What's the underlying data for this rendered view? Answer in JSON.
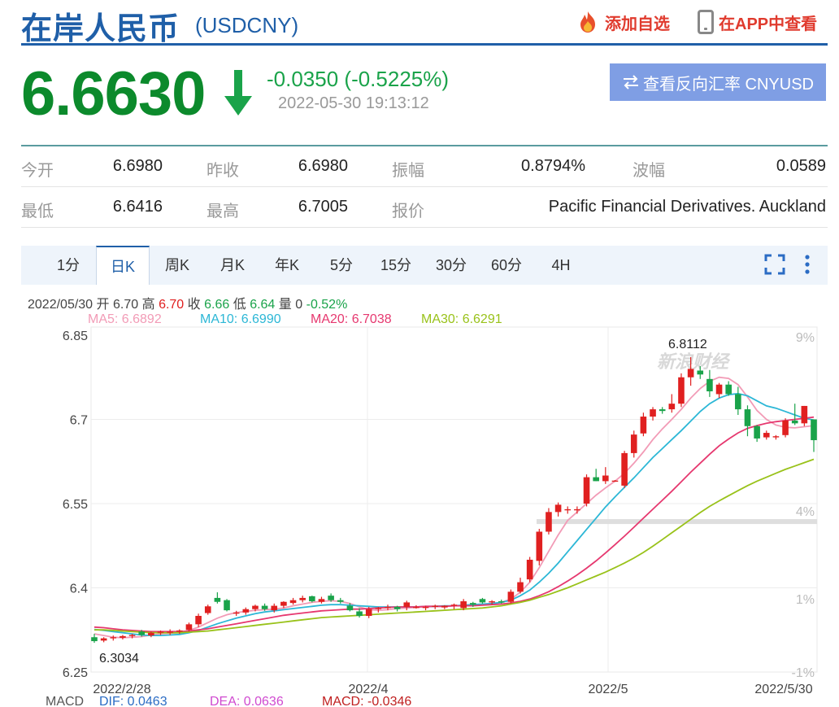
{
  "header": {
    "title": "在岸人民币",
    "code": "(USDCNY)",
    "add_watchlist": "添加自选",
    "view_in_app": "在APP中查看"
  },
  "quote": {
    "price": "6.6630",
    "change": "-0.0350 (-0.5225%)",
    "time": "2022-05-30 19:13:12",
    "direction": "down",
    "reverse_button": "查看反向汇率 CNYUSD"
  },
  "stats": {
    "open_label": "今开",
    "open": "6.6980",
    "prev_close_label": "昨收",
    "prev_close": "6.6980",
    "amplitude_label": "振幅",
    "amplitude": "0.8794%",
    "range_label": "波幅",
    "range": "0.0589",
    "low_label": "最低",
    "low": "6.6416",
    "high_label": "最高",
    "high": "6.7005",
    "quote_label": "报价",
    "quote_source": "Pacific Financial Derivatives. Auckland"
  },
  "tabs": [
    "1分",
    "日K",
    "周K",
    "月K",
    "年K",
    "5分",
    "15分",
    "30分",
    "60分",
    "4H"
  ],
  "active_tab": "日K",
  "info": {
    "date": "2022/05/30",
    "open_label": "开",
    "open": "6.70",
    "high_label": "高",
    "high": "6.70",
    "close_label": "收",
    "close": "6.66",
    "low_label": "低",
    "low": "6.64",
    "vol_label": "量",
    "vol": "0",
    "pct": "-0.52%"
  },
  "ma": {
    "ma5": "MA5: 6.6892",
    "ma10": "MA10: 6.6990",
    "ma20": "MA20: 6.7038",
    "ma30": "MA30: 6.6291"
  },
  "macd": {
    "label": "MACD",
    "dif": "DIF: 0.0463",
    "dea": "DEA: 0.0636",
    "macd": "MACD: -0.0346"
  },
  "colors": {
    "up": "#e02020",
    "down": "#1aa34a",
    "ma5": "#f29bb6",
    "ma10": "#2cb7d6",
    "ma20": "#e6386f",
    "ma30": "#99c21a",
    "brand": "#1f5fa8"
  },
  "chart_data": {
    "type": "candlestick",
    "y_ticks": [
      "6.85",
      "6.7",
      "6.55",
      "6.4",
      "6.25"
    ],
    "y_range": [
      6.25,
      6.85
    ],
    "pct_ticks": [
      "9%",
      "4%",
      "1%",
      "-1%"
    ],
    "x_ticks": [
      "2022/2/28",
      "2022/4",
      "2022/5",
      "2022/5/30"
    ],
    "max_label": "6.8112",
    "min_label": "6.3034",
    "watermark": "新浪财经",
    "candles": [
      [
        6.312,
        6.318,
        6.302,
        6.305
      ],
      [
        6.306,
        6.312,
        6.303,
        6.31
      ],
      [
        6.31,
        6.315,
        6.306,
        6.312
      ],
      [
        6.311,
        6.316,
        6.308,
        6.314
      ],
      [
        6.314,
        6.318,
        6.31,
        6.316
      ],
      [
        6.322,
        6.325,
        6.313,
        6.316
      ],
      [
        6.315,
        6.322,
        6.312,
        6.32
      ],
      [
        6.32,
        6.324,
        6.316,
        6.322
      ],
      [
        6.32,
        6.326,
        6.316,
        6.322
      ],
      [
        6.322,
        6.326,
        6.318,
        6.324
      ],
      [
        6.325,
        6.338,
        6.322,
        6.335
      ],
      [
        6.335,
        6.354,
        6.33,
        6.35
      ],
      [
        6.355,
        6.37,
        6.352,
        6.367
      ],
      [
        6.382,
        6.392,
        6.372,
        6.375
      ],
      [
        6.378,
        6.38,
        6.358,
        6.36
      ],
      [
        6.355,
        6.359,
        6.35,
        6.356
      ],
      [
        6.356,
        6.365,
        6.352,
        6.362
      ],
      [
        6.362,
        6.37,
        6.358,
        6.368
      ],
      [
        6.368,
        6.372,
        6.359,
        6.362
      ],
      [
        6.36,
        6.372,
        6.356,
        6.368
      ],
      [
        6.368,
        6.376,
        6.364,
        6.375
      ],
      [
        6.373,
        6.382,
        6.37,
        6.378
      ],
      [
        6.378,
        6.386,
        6.374,
        6.382
      ],
      [
        6.385,
        6.386,
        6.374,
        6.376
      ],
      [
        6.375,
        6.384,
        6.372,
        6.38
      ],
      [
        6.386,
        6.39,
        6.375,
        6.378
      ],
      [
        6.378,
        6.382,
        6.372,
        6.375
      ],
      [
        6.368,
        6.373,
        6.358,
        6.36
      ],
      [
        6.358,
        6.364,
        6.347,
        6.35
      ],
      [
        6.35,
        6.366,
        6.346,
        6.362
      ],
      [
        6.362,
        6.366,
        6.356,
        6.364
      ],
      [
        6.364,
        6.37,
        6.36,
        6.366
      ],
      [
        6.366,
        6.368,
        6.358,
        6.362
      ],
      [
        6.366,
        6.377,
        6.36,
        6.374
      ],
      [
        6.366,
        6.369,
        6.363,
        6.366
      ],
      [
        6.364,
        6.368,
        6.36,
        6.366
      ],
      [
        6.366,
        6.37,
        6.362,
        6.368
      ],
      [
        6.365,
        6.369,
        6.362,
        6.368
      ],
      [
        6.368,
        6.372,
        6.362,
        6.37
      ],
      [
        6.364,
        6.38,
        6.36,
        6.376
      ],
      [
        6.373,
        6.375,
        6.366,
        6.37
      ],
      [
        6.38,
        6.382,
        6.372,
        6.374
      ],
      [
        6.374,
        6.378,
        6.37,
        6.376
      ],
      [
        6.376,
        6.379,
        6.372,
        6.375
      ],
      [
        6.375,
        6.397,
        6.372,
        6.393
      ],
      [
        6.393,
        6.418,
        6.39,
        6.41
      ],
      [
        6.415,
        6.455,
        6.41,
        6.45
      ],
      [
        6.448,
        6.505,
        6.44,
        6.5
      ],
      [
        6.5,
        6.542,
        6.495,
        6.535
      ],
      [
        6.535,
        6.552,
        6.527,
        6.548
      ],
      [
        6.54,
        6.545,
        6.532,
        6.54
      ],
      [
        6.54,
        6.545,
        6.532,
        6.54
      ],
      [
        6.55,
        6.602,
        6.545,
        6.597
      ],
      [
        6.597,
        6.612,
        6.59,
        6.59
      ],
      [
        6.59,
        6.615,
        6.585,
        6.6
      ],
      [
        6.591,
        6.592,
        6.589,
        6.591
      ],
      [
        6.582,
        6.644,
        6.578,
        6.64
      ],
      [
        6.64,
        6.68,
        6.632,
        6.673
      ],
      [
        6.675,
        6.712,
        6.67,
        6.705
      ],
      [
        6.705,
        6.722,
        6.698,
        6.718
      ],
      [
        6.718,
        6.722,
        6.71,
        6.715
      ],
      [
        6.718,
        6.745,
        6.712,
        6.728
      ],
      [
        6.728,
        6.782,
        6.722,
        6.775
      ],
      [
        6.775,
        6.811,
        6.76,
        6.79
      ],
      [
        6.787,
        6.795,
        6.772,
        6.78
      ],
      [
        6.772,
        6.788,
        6.74,
        6.75
      ],
      [
        6.745,
        6.765,
        6.738,
        6.762
      ],
      [
        6.762,
        6.768,
        6.742,
        6.745
      ],
      [
        6.745,
        6.758,
        6.708,
        6.718
      ],
      [
        6.718,
        6.725,
        6.67,
        6.688
      ],
      [
        6.688,
        6.69,
        6.66,
        6.666
      ],
      [
        6.668,
        6.68,
        6.664,
        6.676
      ],
      [
        6.668,
        6.672,
        6.664,
        6.67
      ],
      [
        6.672,
        6.702,
        6.668,
        6.698
      ],
      [
        6.698,
        6.728,
        6.69,
        6.693
      ],
      [
        6.693,
        6.724,
        6.688,
        6.724
      ],
      [
        6.7,
        6.7,
        6.642,
        6.663
      ]
    ],
    "ma_series": {
      "MA5": [
        6.318,
        6.315,
        6.312,
        6.311,
        6.312,
        6.313,
        6.316,
        6.318,
        6.319,
        6.32,
        6.324,
        6.33,
        6.338,
        6.346,
        6.352,
        6.356,
        6.358,
        6.36,
        6.361,
        6.362,
        6.364,
        6.368,
        6.371,
        6.374,
        6.376,
        6.377,
        6.376,
        6.372,
        6.366,
        6.361,
        6.36,
        6.361,
        6.363,
        6.364,
        6.365,
        6.366,
        6.367,
        6.367,
        6.368,
        6.369,
        6.37,
        6.371,
        6.372,
        6.374,
        6.38,
        6.392,
        6.41,
        6.436,
        6.465,
        6.494,
        6.52,
        6.535,
        6.55,
        6.565,
        6.578,
        6.59,
        6.604,
        6.622,
        6.642,
        6.664,
        6.683,
        6.7,
        6.718,
        6.738,
        6.755,
        6.768,
        6.775,
        6.773,
        6.762,
        6.74,
        6.716,
        6.7,
        6.69,
        6.686,
        6.685,
        6.687,
        6.689
      ],
      "MA10": [
        6.326,
        6.324,
        6.322,
        6.32,
        6.318,
        6.316,
        6.315,
        6.315,
        6.316,
        6.317,
        6.32,
        6.324,
        6.33,
        6.336,
        6.341,
        6.346,
        6.35,
        6.354,
        6.357,
        6.359,
        6.361,
        6.363,
        6.365,
        6.367,
        6.369,
        6.37,
        6.37,
        6.369,
        6.368,
        6.367,
        6.366,
        6.366,
        6.366,
        6.366,
        6.366,
        6.367,
        6.367,
        6.368,
        6.368,
        6.369,
        6.37,
        6.371,
        6.372,
        6.374,
        6.378,
        6.386,
        6.396,
        6.41,
        6.426,
        6.444,
        6.464,
        6.484,
        6.504,
        6.524,
        6.544,
        6.562,
        6.579,
        6.596,
        6.614,
        6.632,
        6.648,
        6.664,
        6.68,
        6.697,
        6.714,
        6.728,
        6.738,
        6.744,
        6.746,
        6.742,
        6.733,
        6.724,
        6.72,
        6.714,
        6.708,
        6.702,
        6.699
      ],
      "MA20": [
        6.33,
        6.329,
        6.327,
        6.325,
        6.324,
        6.323,
        6.322,
        6.322,
        6.322,
        6.322,
        6.323,
        6.325,
        6.327,
        6.33,
        6.333,
        6.336,
        6.339,
        6.342,
        6.345,
        6.348,
        6.351,
        6.353,
        6.355,
        6.357,
        6.359,
        6.36,
        6.361,
        6.362,
        6.362,
        6.363,
        6.364,
        6.365,
        6.366,
        6.366,
        6.366,
        6.367,
        6.367,
        6.367,
        6.368,
        6.368,
        6.368,
        6.369,
        6.37,
        6.371,
        6.373,
        6.376,
        6.38,
        6.386,
        6.393,
        6.402,
        6.412,
        6.423,
        6.435,
        6.448,
        6.462,
        6.477,
        6.492,
        6.508,
        6.524,
        6.54,
        6.556,
        6.572,
        6.589,
        6.606,
        6.622,
        6.638,
        6.653,
        6.665,
        6.676,
        6.684,
        6.689,
        6.693,
        6.696,
        6.698,
        6.7,
        6.702,
        6.704
      ],
      "MA30": [
        6.325,
        6.325,
        6.324,
        6.323,
        6.322,
        6.321,
        6.32,
        6.32,
        6.32,
        6.32,
        6.321,
        6.322,
        6.323,
        6.325,
        6.327,
        6.329,
        6.331,
        6.333,
        6.335,
        6.337,
        6.339,
        6.341,
        6.343,
        6.345,
        6.347,
        6.348,
        6.349,
        6.35,
        6.351,
        6.352,
        6.353,
        6.354,
        6.355,
        6.356,
        6.357,
        6.358,
        6.359,
        6.36,
        6.361,
        6.362,
        6.363,
        6.364,
        6.366,
        6.368,
        6.371,
        6.374,
        6.378,
        6.383,
        6.388,
        6.394,
        6.4,
        6.407,
        6.414,
        6.421,
        6.428,
        6.436,
        6.444,
        6.453,
        6.463,
        6.474,
        6.486,
        6.498,
        6.51,
        6.522,
        6.534,
        6.545,
        6.555,
        6.564,
        6.573,
        6.582,
        6.59,
        6.597,
        6.604,
        6.611,
        6.617,
        6.623,
        6.629
      ]
    }
  }
}
